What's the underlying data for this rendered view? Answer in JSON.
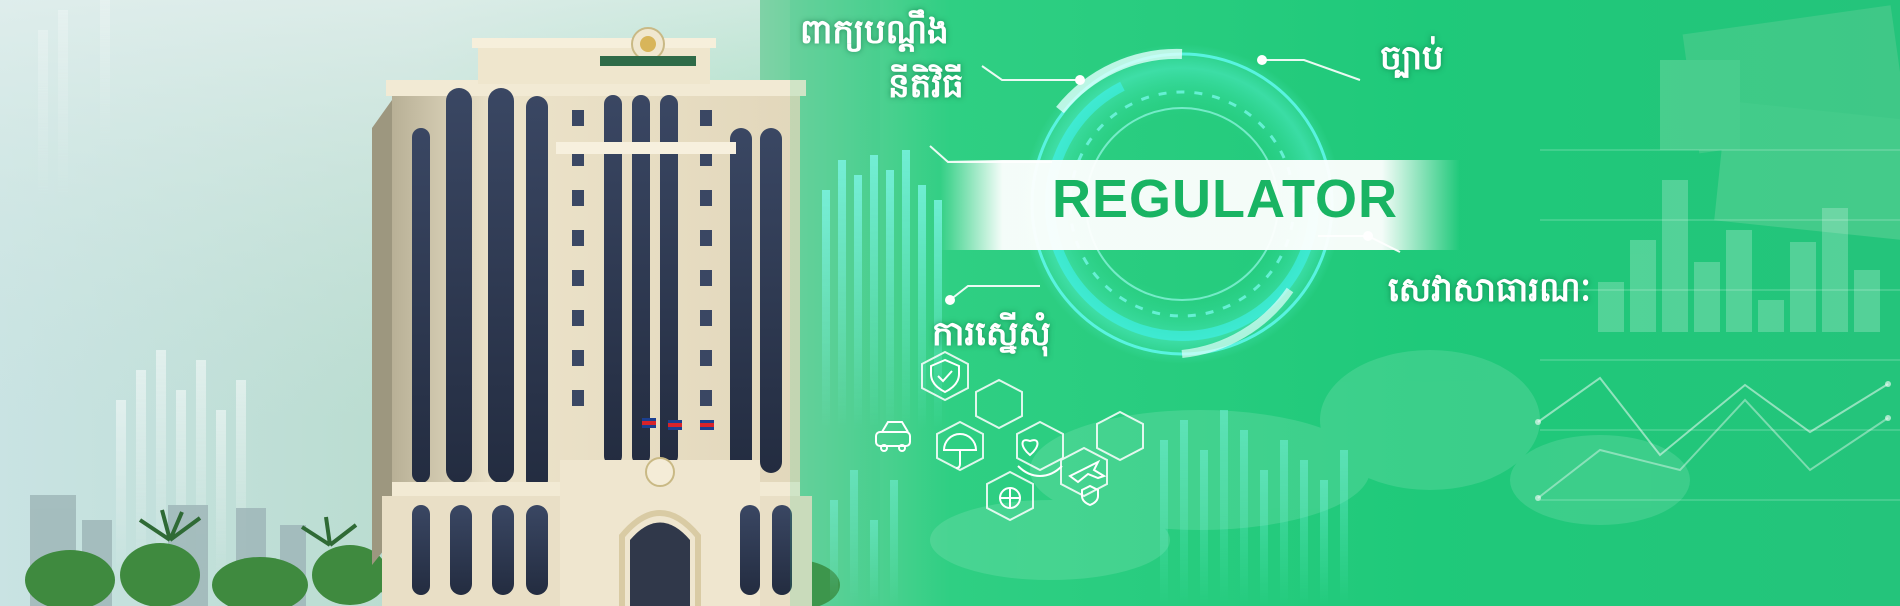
{
  "banner": {
    "title": "REGULATOR",
    "labels": {
      "top_left_line1": "ពាក្យបណ្ដឹង",
      "top_left_line2": "នីតិវិធី",
      "top_right": "ច្បាប់",
      "right": "សេវាសាធារណៈ",
      "bottom_left": "ការស្នើសុំ"
    },
    "icons": [
      "car-protection-icon",
      "shield-check-icon",
      "hands-health-icon",
      "umbrella-money-icon",
      "plane-shield-icon",
      "globe-people-icon"
    ],
    "colors": {
      "primary_green": "#1fd07a",
      "deep_green": "#0fa85a",
      "cyan_ring": "#3ff2ee",
      "sky": "#cfe6ea",
      "facade": "#e6dcc2",
      "window": "#2c3a55",
      "reg_text": "#19b463"
    }
  }
}
